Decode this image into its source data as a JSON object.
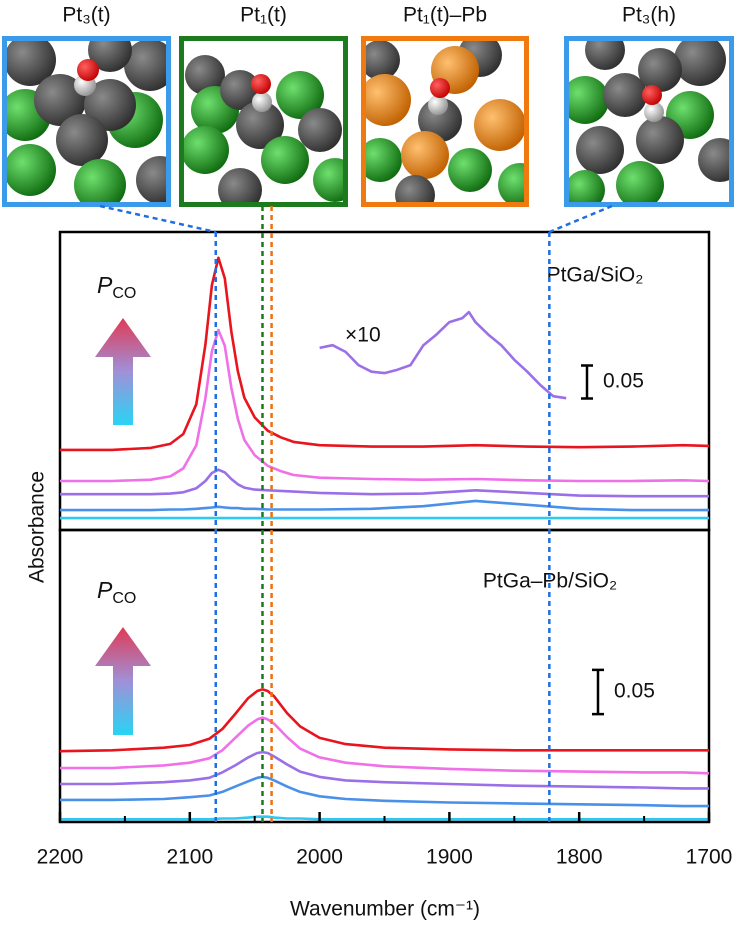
{
  "chart_data": {
    "type": "line",
    "xlabel": "Wavenumber (cm⁻¹)",
    "ylabel": "Absorbance",
    "xlim": [
      2200,
      1700
    ],
    "xticks": [
      2200,
      2100,
      2000,
      1900,
      1800,
      1700
    ],
    "xminorticks": [
      2150,
      2050,
      1950,
      1850,
      1750
    ],
    "reference_lines": [
      {
        "x": 2080,
        "color": "#1f6fe0"
      },
      {
        "x": 2044,
        "color": "#1a7a1a"
      },
      {
        "x": 2037,
        "color": "#f07010"
      },
      {
        "x": 1823,
        "color": "#1f6fe0"
      }
    ],
    "images": [
      {
        "label": "Pt₃(t)",
        "color": "#3b9be8"
      },
      {
        "label": "Pt₁(t)",
        "color": "#1e7a1e"
      },
      {
        "label": "Pt₁(t)–Pb",
        "color": "#f07a10"
      },
      {
        "label": "Pt₃(h)",
        "color": "#3b9be8"
      }
    ],
    "pressure_label": {
      "symbol": "P",
      "subscript": "CO"
    },
    "panels": [
      {
        "label": "PtGa/SiO₂",
        "ylim": [
          0,
          0.45
        ],
        "scale_bar": 0.05,
        "x": [
          2200,
          2160,
          2130,
          2115,
          2105,
          2095,
          2088,
          2083,
          2078,
          2073,
          2068,
          2063,
          2058,
          2050,
          2040,
          2030,
          2020,
          2000,
          1960,
          1920,
          1880,
          1840,
          1800,
          1760,
          1720,
          1700
        ],
        "series": [
          {
            "color": "#e8141e",
            "values": [
              0.121,
              0.121,
              0.124,
              0.13,
              0.145,
              0.19,
              0.28,
              0.37,
              0.411,
              0.38,
              0.3,
              0.24,
              0.2,
              0.17,
              0.15,
              0.14,
              0.133,
              0.128,
              0.126,
              0.126,
              0.128,
              0.126,
              0.125,
              0.126,
              0.128,
              0.127
            ]
          },
          {
            "color": "#f070e8",
            "values": [
              0.074,
              0.074,
              0.076,
              0.081,
              0.093,
              0.128,
              0.199,
              0.27,
              0.302,
              0.278,
              0.215,
              0.168,
              0.136,
              0.113,
              0.097,
              0.089,
              0.083,
              0.079,
              0.077,
              0.076,
              0.077,
              0.075,
              0.074,
              0.074,
              0.075,
              0.074
            ]
          },
          {
            "color": "#9b6fe8",
            "values": [
              0.054,
              0.054,
              0.054,
              0.055,
              0.057,
              0.063,
              0.074,
              0.086,
              0.091,
              0.087,
              0.077,
              0.069,
              0.064,
              0.061,
              0.06,
              0.059,
              0.058,
              0.056,
              0.054,
              0.055,
              0.06,
              0.056,
              0.052,
              0.051,
              0.051,
              0.051
            ]
          },
          {
            "color": "#4a90e8",
            "values": [
              0.03,
              0.03,
              0.03,
              0.031,
              0.031,
              0.032,
              0.033,
              0.034,
              0.035,
              0.034,
              0.033,
              0.033,
              0.032,
              0.032,
              0.031,
              0.031,
              0.031,
              0.031,
              0.032,
              0.036,
              0.044,
              0.038,
              0.032,
              0.03,
              0.03,
              0.03
            ]
          },
          {
            "color": "#30c8f0",
            "values": [
              0.018,
              0.018,
              0.018,
              0.018,
              0.018,
              0.018,
              0.018,
              0.018,
              0.018,
              0.018,
              0.018,
              0.018,
              0.018,
              0.018,
              0.018,
              0.018,
              0.018,
              0.018,
              0.018,
              0.018,
              0.018,
              0.018,
              0.018,
              0.018,
              0.018,
              0.018
            ]
          }
        ],
        "inset": {
          "label": "×10",
          "color": "#9b6fe8",
          "x": [
            2000,
            1990,
            1980,
            1970,
            1960,
            1950,
            1940,
            1930,
            1920,
            1910,
            1900,
            1890,
            1885,
            1880,
            1870,
            1860,
            1850,
            1840,
            1830,
            1820,
            1810
          ],
          "values": [
            0.275,
            0.279,
            0.269,
            0.249,
            0.239,
            0.237,
            0.242,
            0.249,
            0.279,
            0.295,
            0.314,
            0.32,
            0.329,
            0.314,
            0.295,
            0.279,
            0.257,
            0.239,
            0.219,
            0.202,
            0.199
          ]
        }
      },
      {
        "label": "PtGa–Pb/SiO₂",
        "ylim": [
          0,
          0.33
        ],
        "scale_bar": 0.05,
        "x": [
          2200,
          2160,
          2120,
          2100,
          2085,
          2075,
          2065,
          2055,
          2048,
          2044,
          2040,
          2035,
          2025,
          2015,
          2000,
          1980,
          1950,
          1900,
          1850,
          1800,
          1750,
          1720,
          1700
        ],
        "series": [
          {
            "color": "#e8141e",
            "values": [
              0.08,
              0.081,
              0.084,
              0.087,
              0.094,
              0.105,
              0.122,
              0.14,
              0.148,
              0.15,
              0.148,
              0.142,
              0.123,
              0.108,
              0.095,
              0.088,
              0.084,
              0.082,
              0.081,
              0.081,
              0.081,
              0.081,
              0.081
            ]
          },
          {
            "color": "#f070e8",
            "values": [
              0.061,
              0.061,
              0.064,
              0.067,
              0.072,
              0.081,
              0.095,
              0.109,
              0.116,
              0.118,
              0.116,
              0.111,
              0.096,
              0.083,
              0.073,
              0.067,
              0.063,
              0.06,
              0.058,
              0.057,
              0.056,
              0.056,
              0.055
            ]
          },
          {
            "color": "#9b6fe8",
            "values": [
              0.043,
              0.043,
              0.045,
              0.047,
              0.05,
              0.056,
              0.064,
              0.073,
              0.078,
              0.079,
              0.078,
              0.074,
              0.065,
              0.057,
              0.051,
              0.047,
              0.045,
              0.043,
              0.041,
              0.04,
              0.039,
              0.038,
              0.038
            ]
          },
          {
            "color": "#4a90e8",
            "values": [
              0.025,
              0.025,
              0.026,
              0.028,
              0.03,
              0.034,
              0.04,
              0.046,
              0.05,
              0.051,
              0.05,
              0.047,
              0.04,
              0.034,
              0.029,
              0.026,
              0.024,
              0.022,
              0.021,
              0.02,
              0.019,
              0.018,
              0.018
            ]
          },
          {
            "color": "#30c8f0",
            "values": [
              0.003,
              0.003,
              0.003,
              0.003,
              0.003,
              0.004,
              0.004,
              0.005,
              0.006,
              0.006,
              0.006,
              0.005,
              0.004,
              0.004,
              0.003,
              0.003,
              0.003,
              0.003,
              0.003,
              0.003,
              0.003,
              0.003,
              0.003
            ]
          }
        ]
      }
    ]
  }
}
